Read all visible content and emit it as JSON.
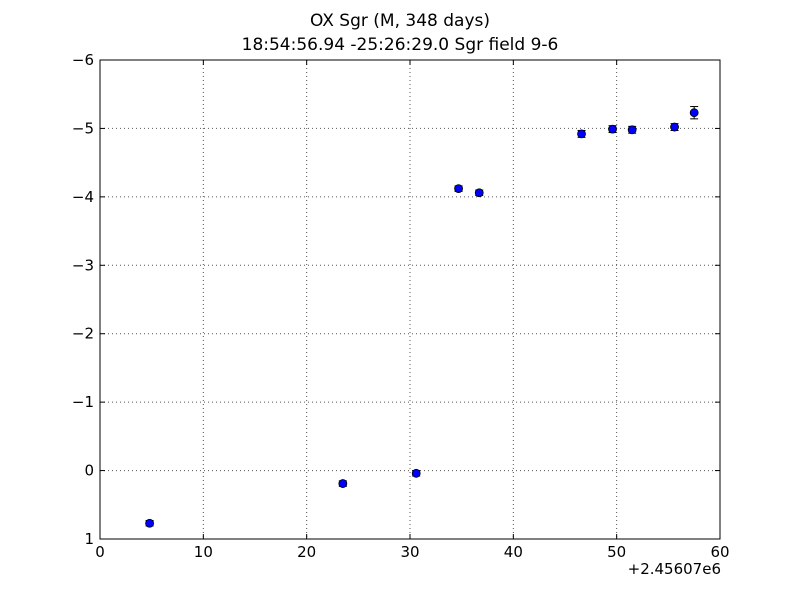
{
  "title": {
    "line1": "OX Sgr  (M, 348 days)",
    "line2": "18:54:56.94 -25:26:29.0 Sgr field 9-6"
  },
  "x_offset_label": "+2.45607e6",
  "colors": {
    "marker": "#0000ff",
    "marker_edge": "#000000",
    "grid": "#555555"
  },
  "chart_data": {
    "type": "scatter",
    "title": "OX Sgr  (M, 348 days)\n18:54:56.94 -25:26:29.0 Sgr field 9-6",
    "xlabel": "",
    "ylabel": "",
    "xlim": [
      0,
      60
    ],
    "ylim": [
      1,
      -6
    ],
    "y_inverted": true,
    "grid": true,
    "x_ticks": [
      0,
      10,
      20,
      30,
      40,
      50,
      60
    ],
    "x_tick_labels": [
      "0",
      "10",
      "20",
      "30",
      "40",
      "50",
      "60"
    ],
    "y_ticks": [
      -6,
      -5,
      -4,
      -3,
      -2,
      -1,
      0,
      1
    ],
    "y_tick_labels": [
      "−6",
      "−5",
      "−4",
      "−3",
      "−2",
      "−1",
      "0",
      "1"
    ],
    "x_offset": 2456070,
    "points": [
      {
        "x": 4.8,
        "y": 0.77,
        "err": 0.04
      },
      {
        "x": 23.5,
        "y": 0.19,
        "err": 0.04
      },
      {
        "x": 30.6,
        "y": 0.04,
        "err": 0.04
      },
      {
        "x": 34.7,
        "y": -4.12,
        "err": 0.04
      },
      {
        "x": 36.7,
        "y": -4.06,
        "err": 0.04
      },
      {
        "x": 46.6,
        "y": -4.92,
        "err": 0.05
      },
      {
        "x": 49.6,
        "y": -4.99,
        "err": 0.05
      },
      {
        "x": 51.5,
        "y": -4.98,
        "err": 0.05
      },
      {
        "x": 55.6,
        "y": -5.02,
        "err": 0.05
      },
      {
        "x": 57.5,
        "y": -5.23,
        "err": 0.09
      }
    ]
  }
}
